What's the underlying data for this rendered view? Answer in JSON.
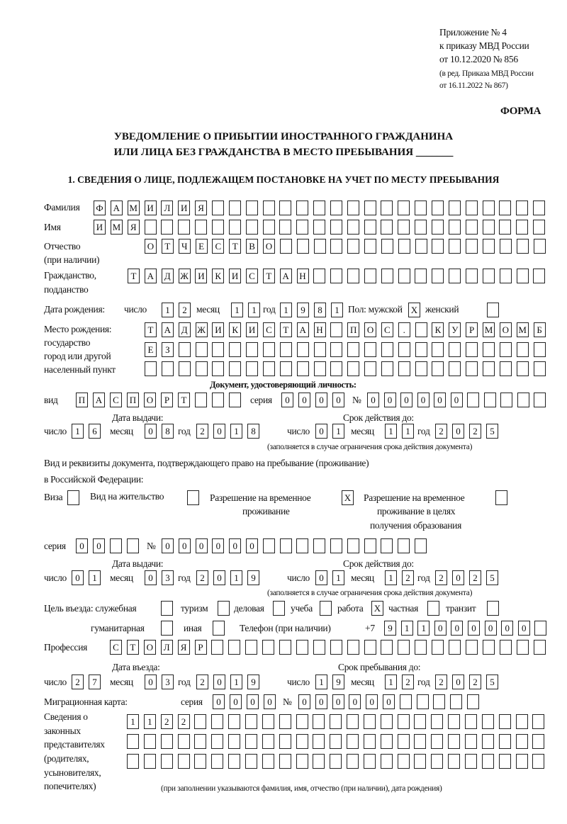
{
  "header": {
    "appendix": "Приложение № 4",
    "order": "к приказу МВД России",
    "date": "от 10.12.2020 № 856",
    "edition1": "(в ред. Приказа МВД России",
    "edition2": "от 16.11.2022 № 867)",
    "form": "ФОРМА",
    "title1": "УВЕДОМЛЕНИЕ О ПРИБЫТИИ ИНОСТРАННОГО ГРАЖДАНИНА",
    "title2": "ИЛИ ЛИЦА БЕЗ ГРАЖДАНСТВА В МЕСТО ПРЕБЫВАНИЯ _______",
    "section1": "1. СВЕДЕНИЯ О ЛИЦЕ, ПОДЛЕЖАЩЕМ ПОСТАНОВКЕ НА УЧЕТ ПО МЕСТУ ПРЕБЫВАНИЯ"
  },
  "labels": {
    "surname": "Фамилия",
    "name": "Имя",
    "patronymic": "Отчество",
    "patronymic_note": "(при наличии)",
    "citizenship": "Гражданство,",
    "citizenship2": "подданство",
    "birth_date": "Дата рождения:",
    "day": "число",
    "month": "месяц",
    "year": "год",
    "sex": "Пол: мужской",
    "female": "женский",
    "birth_place": "Место рождения:",
    "state": "государство",
    "city": "город или другой",
    "settlement": "населенный пункт",
    "id_doc": "Документ, удостоверяющий личность:",
    "kind": "вид",
    "series": "серия",
    "number": "№",
    "issue_date": "Дата выдачи:",
    "valid_until": "Срок действия до:",
    "validity_note": "(заполняется в случае ограничения срока действия документа)",
    "right_doc1": "Вид и реквизиты документа, подтверждающего право на пребывание (проживание)",
    "right_doc2": "в Российской Федерации:",
    "visa": "Виза",
    "residence": "Вид на жительство",
    "temp_permit1": "Разрешение на временное",
    "temp_permit2": "проживание",
    "edu_permit1": "Разрешение на временное",
    "edu_permit2": "проживание в целях",
    "edu_permit3": "получения образования",
    "purpose": "Цель въезда: служебная",
    "tourism": "туризм",
    "business": "деловая",
    "study": "учеба",
    "work": "работа",
    "private": "частная",
    "transit": "транзит",
    "humanitarian": "гуманитарная",
    "other": "иная",
    "phone": "Телефон (при наличии)",
    "phone_prefix": "+7",
    "profession": "Профессия",
    "entry_date": "Дата въезда:",
    "stay_until": "Срок пребывания до:",
    "migration_card": "Миграционная карта:",
    "reps1": "Сведения о",
    "reps2": "законных",
    "reps3": "представителях",
    "reps4": "(родителях,",
    "reps5": "усыновителях,",
    "reps6": "попечителях)",
    "reps_note": "(при заполнении указываются фамилия, имя, отчество (при наличии), дата рождения)"
  },
  "fields": {
    "surname": "ФАМИЛИЯ",
    "name": "ИМЯ",
    "patronymic": "ОТЧЕСТВО",
    "citizenship": "ТАДЖИКИСТАН",
    "birth_day": "12",
    "birth_month": "11",
    "birth_year": "1981",
    "sex_male": "X",
    "sex_female": "",
    "birth_place_1": "ТАДЖИКИСТАН ПОС. КУРМОМБ",
    "birth_place_2": "ЕЗ",
    "birth_place_3": "",
    "doc_kind": "ПАСПОРТ",
    "doc_series": "0000",
    "doc_number": "000000",
    "doc_issue_day": "16",
    "doc_issue_month": "08",
    "doc_issue_year": "2018",
    "doc_valid_day": "01",
    "doc_valid_month": "11",
    "doc_valid_year": "2025",
    "visa": "",
    "residence": "",
    "temp_permit": "X",
    "edu_permit": "",
    "right_series": "00",
    "right_number": "000000",
    "right_issue_day": "01",
    "right_issue_month": "03",
    "right_issue_year": "2019",
    "right_valid_day": "01",
    "right_valid_month": "12",
    "right_valid_year": "2025",
    "purpose_service": "",
    "purpose_tourism": "",
    "purpose_business": "",
    "purpose_study": "",
    "purpose_work": "X",
    "purpose_private": "",
    "purpose_transit": "",
    "purpose_humanitarian": "",
    "purpose_other": "",
    "phone": "911000000",
    "profession": "СТОЛЯР",
    "entry_day": "27",
    "entry_month": "03",
    "entry_year": "2019",
    "stay_day": "19",
    "stay_month": "12",
    "stay_year": "2025",
    "mig_series": "0000",
    "mig_number": "000000",
    "reps_1": "1122",
    "reps_2": "",
    "reps_3": ""
  }
}
